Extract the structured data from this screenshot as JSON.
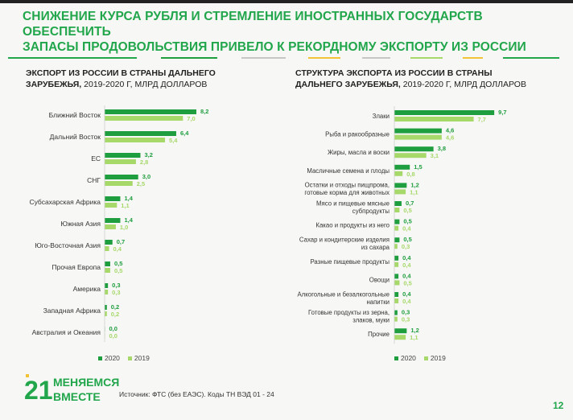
{
  "title_line1": "СНИЖЕНИЕ КУРСА РУБЛЯ И СТРЕМЛЕНИЕ ИНОСТРАННЫХ ГОСУДАРСТВ ОБЕСПЕЧИТЬ",
  "title_line2": "ЗАПАСЫ ПРОДОВОЛЬСТВИЯ ПРИВЕЛО К РЕКОРДНОМУ ЭКСПОРТУ ИЗ РОССИИ",
  "left_panel": {
    "title_bold_1": "ЭКСПОРТ ИЗ РОССИИ В СТРАНЫ ДАЛЬНЕГО",
    "title_bold_2": "ЗАРУБЕЖЬЯ,",
    "title_rest": " 2019-2020 Г, МЛРД ДОЛЛАРОВ"
  },
  "right_panel": {
    "title_bold_1": "СТРУКТУРА ЭКСПОРТА ИЗ РОССИИ В СТРАНЫ",
    "title_bold_2": "ДАЛЬНЕГО ЗАРУБЕЖЬЯ,",
    "title_rest": " 2019-2020 Г, МЛРД ДОЛЛАРОВ"
  },
  "legend": {
    "label_2020": "2020",
    "label_2019": "2019"
  },
  "colors": {
    "y2020": "#1e9e3e",
    "y2019": "#a6d86a",
    "accent": "#21a64b",
    "deco_yellow": "#f2c335"
  },
  "logo": {
    "number": "21",
    "line1": "МЕНЯЕМСЯ",
    "line2": "ВМЕСТЕ"
  },
  "source": "Источник: ФТС (без ЕАЭС). Коды ТН ВЭД 01 - 24",
  "page_number": "12",
  "chart_data": [
    {
      "type": "bar",
      "orientation": "horizontal",
      "title": "ЭКСПОРТ ИЗ РОССИИ В СТРАНЫ ДАЛЬНЕГО ЗАРУБЕЖЬЯ, 2019-2020 Г, МЛРД ДОЛЛАРОВ",
      "categories": [
        "Ближний Восток",
        "Дальний Восток",
        "ЕС",
        "СНГ",
        "Субсахарская Африка",
        "Южная Азия",
        "Юго-Восточная Азия",
        "Прочая Европа",
        "Америка",
        "Западная Африка",
        "Австралия и Океания"
      ],
      "series": [
        {
          "name": "2020",
          "values": [
            "8,2",
            "6,4",
            "3,2",
            "3,0",
            "1,4",
            "1,4",
            "0,7",
            "0,5",
            "0,3",
            "0,2",
            "0,0"
          ]
        },
        {
          "name": "2019",
          "values": [
            "7,0",
            "5,4",
            "2,8",
            "2,5",
            "1,1",
            "1,0",
            "0,4",
            "0,5",
            "0,3",
            "0,2",
            "0,0"
          ]
        }
      ],
      "legend": "bottom-right"
    },
    {
      "type": "bar",
      "orientation": "horizontal",
      "title": "СТРУКТУРА ЭКСПОРТА ИЗ РОССИИ В СТРАНЫ ДАЛЬНЕГО ЗАРУБЕЖЬЯ, 2019-2020 Г, МЛРД ДОЛЛАРОВ",
      "categories": [
        [
          "Злаки"
        ],
        [
          "Рыба и ракообразные"
        ],
        [
          "Жиры, масла и воски"
        ],
        [
          "Масличные семена и плоды"
        ],
        [
          "Остатки и отходы пищпрома,",
          "готовые корма для животных"
        ],
        [
          "Мясо и пищевые мясные",
          "субпродукты"
        ],
        [
          "Какао и продукты из него"
        ],
        [
          "Сахар и кондитерские изделия",
          "из сахара"
        ],
        [
          "Разные пищевые продукты"
        ],
        [
          "Овощи"
        ],
        [
          "Алкогольные и безалкогольные",
          "напитки"
        ],
        [
          "Готовые продукты из зерна,",
          "злаков, муки"
        ],
        [
          "Прочие"
        ]
      ],
      "series": [
        {
          "name": "2020",
          "values": [
            "9,7",
            "4,6",
            "3,8",
            "1,5",
            "1,2",
            "0,7",
            "0,5",
            "0,5",
            "0,4",
            "0,4",
            "0,4",
            "0,3",
            "1,2"
          ]
        },
        {
          "name": "2019",
          "values": [
            "7,7",
            "4,6",
            "3,1",
            "0,8",
            "1,1",
            "0,5",
            "0,4",
            "0,3",
            "0,4",
            "0,5",
            "0,4",
            "0,3",
            "1,1"
          ]
        }
      ],
      "legend": "bottom-right"
    }
  ]
}
